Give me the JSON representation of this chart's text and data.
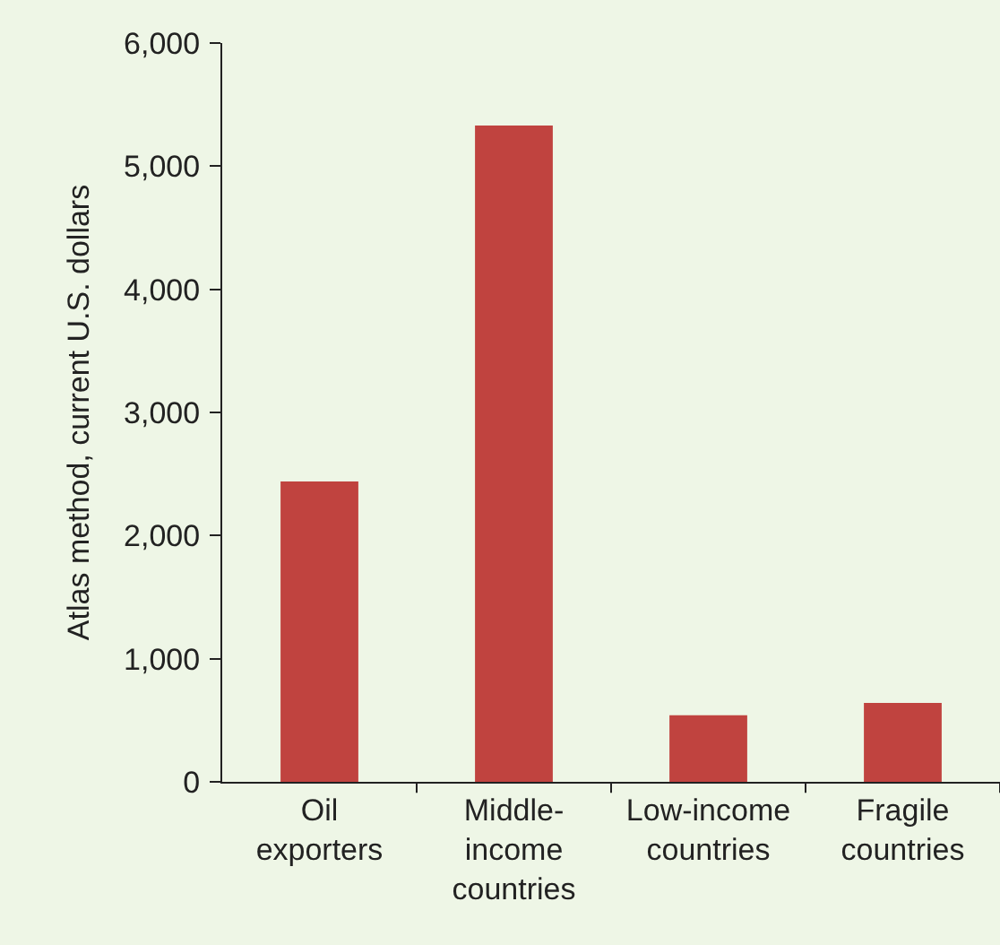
{
  "chart_data": {
    "type": "bar",
    "ylabel": "Atlas method, current U.S. dollars",
    "categories": [
      "Oil exporters",
      "Middle-income countries",
      "Low-income countries",
      "Fragile countries"
    ],
    "values": [
      2440,
      5330,
      540,
      640
    ],
    "color": "#c0433f",
    "ylim": [
      0,
      6000
    ],
    "yticks": [
      {
        "value": 0,
        "label": "0"
      },
      {
        "value": 1000,
        "label": "1,000"
      },
      {
        "value": 2000,
        "label": "2,000"
      },
      {
        "value": 3000,
        "label": "3,000"
      },
      {
        "value": 4000,
        "label": "4,000"
      },
      {
        "value": 5000,
        "label": "5,000"
      },
      {
        "value": 6000,
        "label": "6,000"
      }
    ],
    "grid": false
  }
}
